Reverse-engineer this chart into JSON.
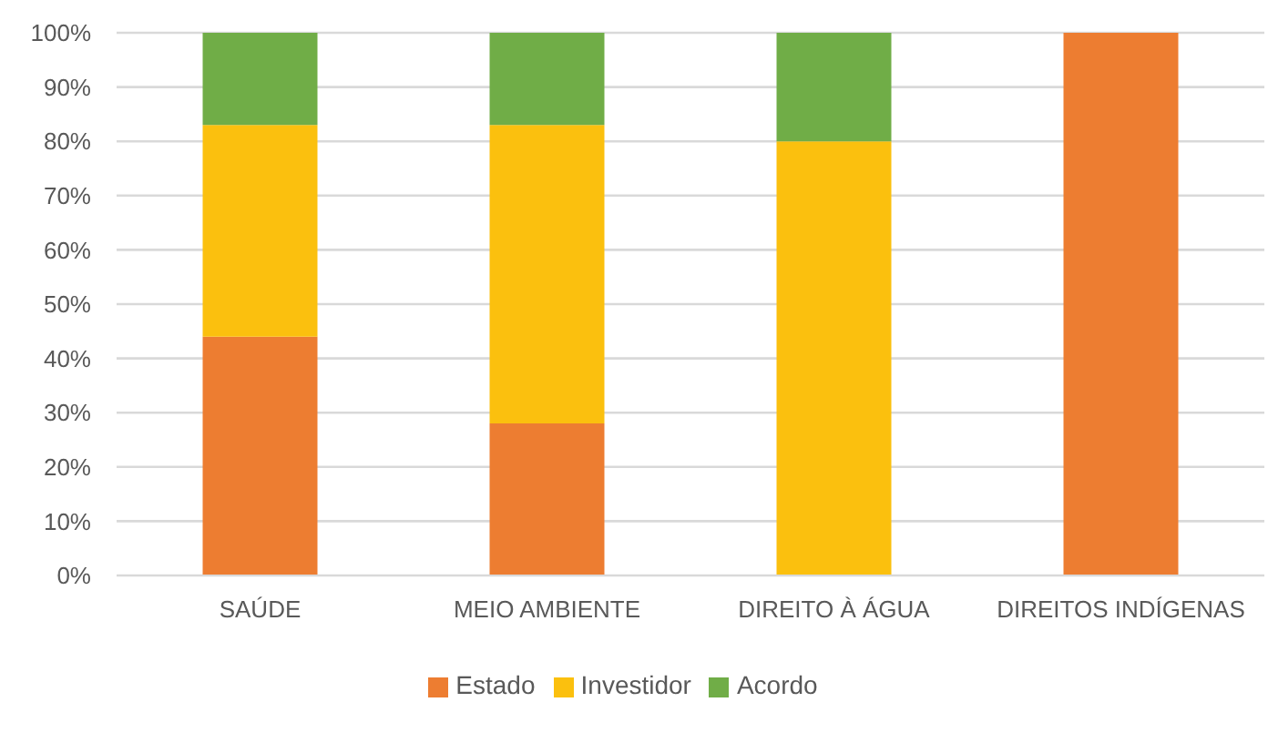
{
  "chart_data": {
    "type": "bar",
    "stacked": true,
    "categories": [
      "SAÚDE",
      "MEIO AMBIENTE",
      "DIREITO À ÁGUA",
      "DIREITOS INDÍGENAS"
    ],
    "series": [
      {
        "name": "Estado",
        "color": "#ed7d31",
        "values": [
          44,
          28,
          0,
          100
        ]
      },
      {
        "name": "Investidor",
        "color": "#fbc00e",
        "values": [
          39,
          55,
          80,
          0
        ]
      },
      {
        "name": "Acordo",
        "color": "#70ad47",
        "values": [
          17,
          17,
          20,
          0
        ]
      }
    ],
    "ylim": [
      0,
      100
    ],
    "yticks": [
      {
        "value": 0,
        "label": "0%"
      },
      {
        "value": 10,
        "label": "10%"
      },
      {
        "value": 20,
        "label": "20%"
      },
      {
        "value": 30,
        "label": "30%"
      },
      {
        "value": 40,
        "label": "40%"
      },
      {
        "value": 50,
        "label": "50%"
      },
      {
        "value": 60,
        "label": "60%"
      },
      {
        "value": 70,
        "label": "70%"
      },
      {
        "value": 80,
        "label": "80%"
      },
      {
        "value": 90,
        "label": "90%"
      },
      {
        "value": 100,
        "label": "100%"
      }
    ],
    "grid": "y",
    "legend": "bottom"
  }
}
